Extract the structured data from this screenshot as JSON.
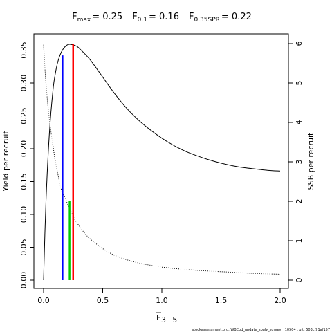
{
  "title_parts": {
    "fmax_label": "F",
    "fmax_sub": "max",
    "fmax_value": "= 0.25",
    "f01_label": "F",
    "f01_sub": "0.1",
    "f01_value": "= 0.16",
    "fspr_label": "F",
    "fspr_sub": "0.35SPR",
    "fspr_value": "= 0.22"
  },
  "footer": "stockassessment.org, WBCod_update_spaly_survey, r10504 , git: 503cf91af157",
  "chart_data": {
    "type": "line",
    "xlabel_main": "F",
    "xlabel_sub": "3−5",
    "ylabel_left": "Yield per recruit",
    "ylabel_right": "SSB per recruit",
    "xlim": [
      0,
      2
    ],
    "ylim_left": [
      0,
      0.36
    ],
    "ylim_right": [
      0,
      6
    ],
    "x_ticks": [
      "0.0",
      "0.5",
      "1.0",
      "1.5",
      "2.0"
    ],
    "x_tick_values": [
      0,
      0.5,
      1.0,
      1.5,
      2.0
    ],
    "y_left_ticks": [
      "0.00",
      "0.05",
      "0.10",
      "0.15",
      "0.20",
      "0.25",
      "0.30",
      "0.35"
    ],
    "y_left_tick_values": [
      0,
      0.05,
      0.1,
      0.15,
      0.2,
      0.25,
      0.3,
      0.35
    ],
    "y_right_ticks": [
      "0",
      "1",
      "2",
      "3",
      "4",
      "5",
      "6"
    ],
    "y_right_tick_values": [
      0,
      1,
      2,
      3,
      4,
      5,
      6
    ],
    "series": [
      {
        "axis": "left",
        "line_style": "solid",
        "color": "#000000",
        "x": [
          0,
          0.02,
          0.05,
          0.08,
          0.1,
          0.12,
          0.15,
          0.18,
          0.2,
          0.22,
          0.25,
          0.28,
          0.3,
          0.35,
          0.4,
          0.5,
          0.6,
          0.7,
          0.8,
          0.9,
          1.0,
          1.1,
          1.2,
          1.3,
          1.4,
          1.5,
          1.6,
          1.7,
          1.8,
          1.9,
          2.0
        ],
        "y": [
          0.0,
          0.118,
          0.226,
          0.29,
          0.315,
          0.332,
          0.347,
          0.355,
          0.358,
          0.359,
          0.358,
          0.356,
          0.353,
          0.344,
          0.334,
          0.309,
          0.284,
          0.262,
          0.244,
          0.229,
          0.216,
          0.205,
          0.196,
          0.189,
          0.183,
          0.178,
          0.174,
          0.171,
          0.169,
          0.167,
          0.166
        ]
      },
      {
        "axis": "right",
        "line_style": "dotted",
        "color": "#000000",
        "x": [
          0,
          0.02,
          0.05,
          0.08,
          0.1,
          0.12,
          0.15,
          0.18,
          0.2,
          0.22,
          0.25,
          0.28,
          0.3,
          0.35,
          0.4,
          0.5,
          0.6,
          0.7,
          0.8,
          0.9,
          1.0,
          1.2,
          1.4,
          1.6,
          1.8,
          2.0
        ],
        "y": [
          5.97,
          5.0,
          4.05,
          3.4,
          3.0,
          2.7,
          2.3,
          2.1,
          1.95,
          1.82,
          1.62,
          1.46,
          1.38,
          1.18,
          1.03,
          0.8,
          0.63,
          0.52,
          0.44,
          0.38,
          0.33,
          0.27,
          0.23,
          0.2,
          0.17,
          0.15
        ]
      }
    ],
    "ref_lines": [
      {
        "name": "F0.1",
        "x": 0.16,
        "y_top": 0.342,
        "color": "#0000ff"
      },
      {
        "name": "Fmax",
        "x": 0.25,
        "y_top": 0.359,
        "color": "#ff0000"
      },
      {
        "name": "F0.35SPR",
        "x": 0.22,
        "y_top": 0.121,
        "color": "#00cc00"
      }
    ]
  }
}
